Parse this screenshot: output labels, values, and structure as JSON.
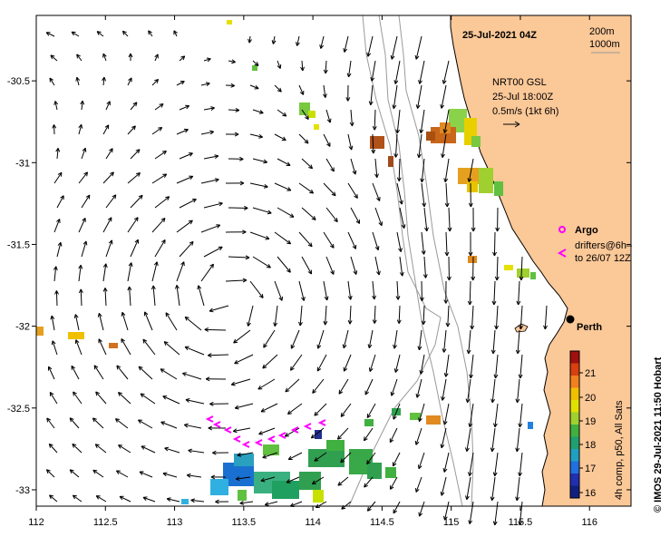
{
  "title": "25-Jul-2021 04Z",
  "depth_contours": [
    "200m",
    "1000m"
  ],
  "current_source": {
    "product": "NRT00 GSL",
    "time": "25-Jul 18:00Z",
    "scale": "0.5m/s (1kt 6h)"
  },
  "legend": {
    "argo": "Argo",
    "drifters_line1": "drifters@6h–",
    "drifters_line2": "to 26/07 12Z"
  },
  "city": "Perth",
  "colorbar": {
    "label": "4h comp, p50, All Sats",
    "ticks": [
      "21",
      "20",
      "19",
      "18",
      "17",
      "16"
    ]
  },
  "credit": "© IMOS 29-Jul-2021 11:50 Hobart",
  "axes": {
    "x_ticks": [
      "112",
      "112.5",
      "113",
      "113.5",
      "114",
      "114.5",
      "115",
      "115.5",
      "116"
    ],
    "y_ticks": [
      "-30.5",
      "-31",
      "-31.5",
      "-32",
      "-32.5",
      "-33"
    ],
    "lon_range": [
      112,
      116.3
    ],
    "lat_range": [
      -33.1,
      -30.1
    ]
  },
  "colors": {
    "land": "#fbc898",
    "ocean": "#ffffff",
    "argo": "#ff00ff",
    "drifter": "#ff00ff"
  }
}
